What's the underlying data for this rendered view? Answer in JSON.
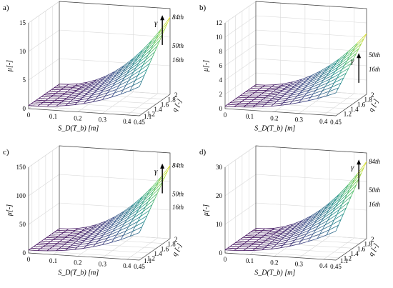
{
  "chart_data": [
    {
      "type": "surface",
      "panel_label": "a)",
      "xlabel": "S_D(T_b) [m]",
      "ylabel": "q [-]",
      "zlabel": "μ[-]",
      "x_ticks": [
        "0",
        "0.1",
        "0.2",
        "0.3",
        "0.4",
        "0.45"
      ],
      "x_tick_values": [
        0,
        0.1,
        0.2,
        0.3,
        0.4,
        0.45
      ],
      "y_ticks": [
        "1.1",
        "1.2",
        "1.4",
        "1.6",
        "1.8",
        "2"
      ],
      "y_tick_values": [
        1.1,
        1.2,
        1.4,
        1.6,
        1.8,
        2.0
      ],
      "z_ticks": [
        "0",
        "5",
        "10",
        "15"
      ],
      "z_tick_values": [
        0,
        5,
        10,
        15
      ],
      "xlim": [
        0,
        0.45
      ],
      "ylim": [
        1.1,
        2.0
      ],
      "zlim": [
        0,
        15
      ],
      "percentile_labels": [
        "84th",
        "50th",
        "16th"
      ],
      "percentile_values": [
        13.5,
        8.5,
        6.0
      ],
      "arrow_label": "γ",
      "surface_max": 13.5,
      "grid": true
    },
    {
      "type": "surface",
      "panel_label": "b)",
      "xlabel": "S_D(T_b) [m]",
      "ylabel": "q [-]",
      "zlabel": "μ[-]",
      "x_ticks": [
        "0",
        "0.1",
        "0.2",
        "0.3",
        "0.4",
        "0.45"
      ],
      "x_tick_values": [
        0,
        0.1,
        0.2,
        0.3,
        0.4,
        0.45
      ],
      "y_ticks": [
        "1.2",
        "1.4",
        "1.6",
        "1.8",
        "2"
      ],
      "y_tick_values": [
        1.2,
        1.4,
        1.6,
        1.8,
        2.0
      ],
      "z_ticks": [
        "0",
        "2",
        "4",
        "6",
        "8",
        "10",
        "12"
      ],
      "z_tick_values": [
        0,
        2,
        4,
        6,
        8,
        10,
        12
      ],
      "xlim": [
        0,
        0.45
      ],
      "ylim": [
        1.1,
        2.0
      ],
      "zlim": [
        0,
        12
      ],
      "percentile_labels": [
        "50th",
        "16th"
      ],
      "percentile_values": [
        5.5,
        3.5
      ],
      "arrow_label": "γ",
      "surface_max": 8.5,
      "grid": true
    },
    {
      "type": "surface",
      "panel_label": "c)",
      "xlabel": "S_D(T_b) [m]",
      "ylabel": "q [-]",
      "zlabel": "μ[-]",
      "x_ticks": [
        "0",
        "0.1",
        "0.2",
        "0.3",
        "0.4",
        "0.45"
      ],
      "x_tick_values": [
        0,
        0.1,
        0.2,
        0.3,
        0.4,
        0.45
      ],
      "y_ticks": [
        "1.1",
        "1.2",
        "1.4",
        "1.6",
        "1.8",
        "2"
      ],
      "y_tick_values": [
        1.1,
        1.2,
        1.4,
        1.6,
        1.8,
        2.0
      ],
      "z_ticks": [
        "0",
        "50",
        "100",
        "150"
      ],
      "z_tick_values": [
        0,
        50,
        100,
        150
      ],
      "xlim": [
        0,
        0.45
      ],
      "ylim": [
        1.1,
        2.0
      ],
      "zlim": [
        0,
        150
      ],
      "percentile_labels": [
        "84th",
        "50th",
        "16th"
      ],
      "percentile_values": [
        128,
        78,
        55
      ],
      "arrow_label": "γ",
      "surface_max": 128,
      "grid": true
    },
    {
      "type": "surface",
      "panel_label": "d)",
      "xlabel": "S_D(T_b) [m]",
      "ylabel": "q [-]",
      "zlabel": "μ[-]",
      "x_ticks": [
        "0",
        "0.1",
        "0.2",
        "0.3",
        "0.4",
        "0.45"
      ],
      "x_tick_values": [
        0,
        0.1,
        0.2,
        0.3,
        0.4,
        0.45
      ],
      "y_ticks": [
        "1.1",
        "1.2",
        "1.4",
        "1.6",
        "1.8",
        "2"
      ],
      "y_tick_values": [
        1.1,
        1.2,
        1.4,
        1.6,
        1.8,
        2.0
      ],
      "z_ticks": [
        "0",
        "10",
        "20",
        "30"
      ],
      "z_tick_values": [
        0,
        10,
        20,
        30
      ],
      "xlim": [
        0,
        0.45
      ],
      "ylim": [
        1.1,
        2.0
      ],
      "zlim": [
        0,
        30
      ],
      "percentile_labels": [
        "84th",
        "50th",
        "16th"
      ],
      "percentile_values": [
        27,
        17,
        12
      ],
      "arrow_label": "γ",
      "surface_max": 27,
      "grid": true
    }
  ]
}
